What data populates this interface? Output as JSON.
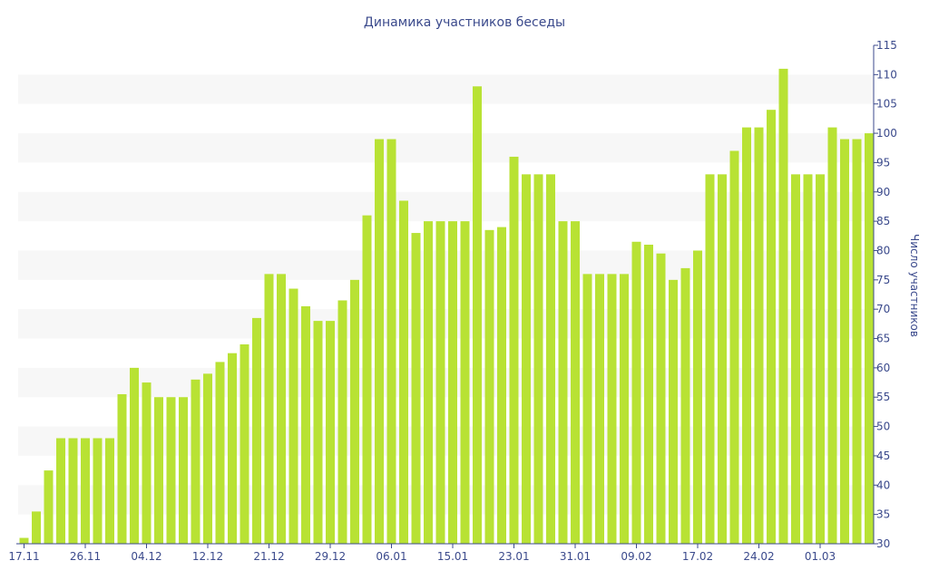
{
  "chart_data": {
    "type": "bar",
    "title": "Динамика участников беседы",
    "ylabel": "Число участников",
    "xlabel": "",
    "ylim": [
      30,
      115
    ],
    "y_ticks": [
      30,
      35,
      40,
      45,
      50,
      55,
      60,
      65,
      70,
      75,
      80,
      85,
      90,
      95,
      100,
      105,
      110,
      115
    ],
    "y_axis_position": "right",
    "bar_color": "#b8e234",
    "band_color": "#f7f7f7",
    "text_color": "#3b4a8c",
    "x_tick_labels": [
      {
        "index": 0,
        "label": "17.11"
      },
      {
        "index": 5,
        "label": "26.11"
      },
      {
        "index": 10,
        "label": "04.12"
      },
      {
        "index": 15,
        "label": "12.12"
      },
      {
        "index": 20,
        "label": "21.12"
      },
      {
        "index": 25,
        "label": "29.12"
      },
      {
        "index": 30,
        "label": "06.01"
      },
      {
        "index": 35,
        "label": "15.01"
      },
      {
        "index": 40,
        "label": "23.01"
      },
      {
        "index": 45,
        "label": "31.01"
      },
      {
        "index": 50,
        "label": "09.02"
      },
      {
        "index": 55,
        "label": "17.02"
      },
      {
        "index": 60,
        "label": "24.02"
      },
      {
        "index": 65,
        "label": "01.03"
      }
    ],
    "values": [
      31,
      35.5,
      42.5,
      48,
      48,
      48,
      48,
      48,
      55.5,
      60,
      57.5,
      55,
      55,
      55,
      58,
      59,
      61,
      62.5,
      64,
      68.5,
      76,
      76,
      73.5,
      70.5,
      68,
      68,
      71.5,
      75,
      86,
      99,
      99,
      88.5,
      83,
      85,
      85,
      85,
      85,
      108,
      83.5,
      84,
      96,
      93,
      93,
      93,
      85,
      85,
      76,
      76,
      76,
      76,
      81.5,
      81,
      79.5,
      75,
      77,
      80,
      93,
      93,
      97,
      101,
      101,
      104,
      111,
      93,
      93,
      93,
      101,
      99,
      99,
      100
    ]
  }
}
